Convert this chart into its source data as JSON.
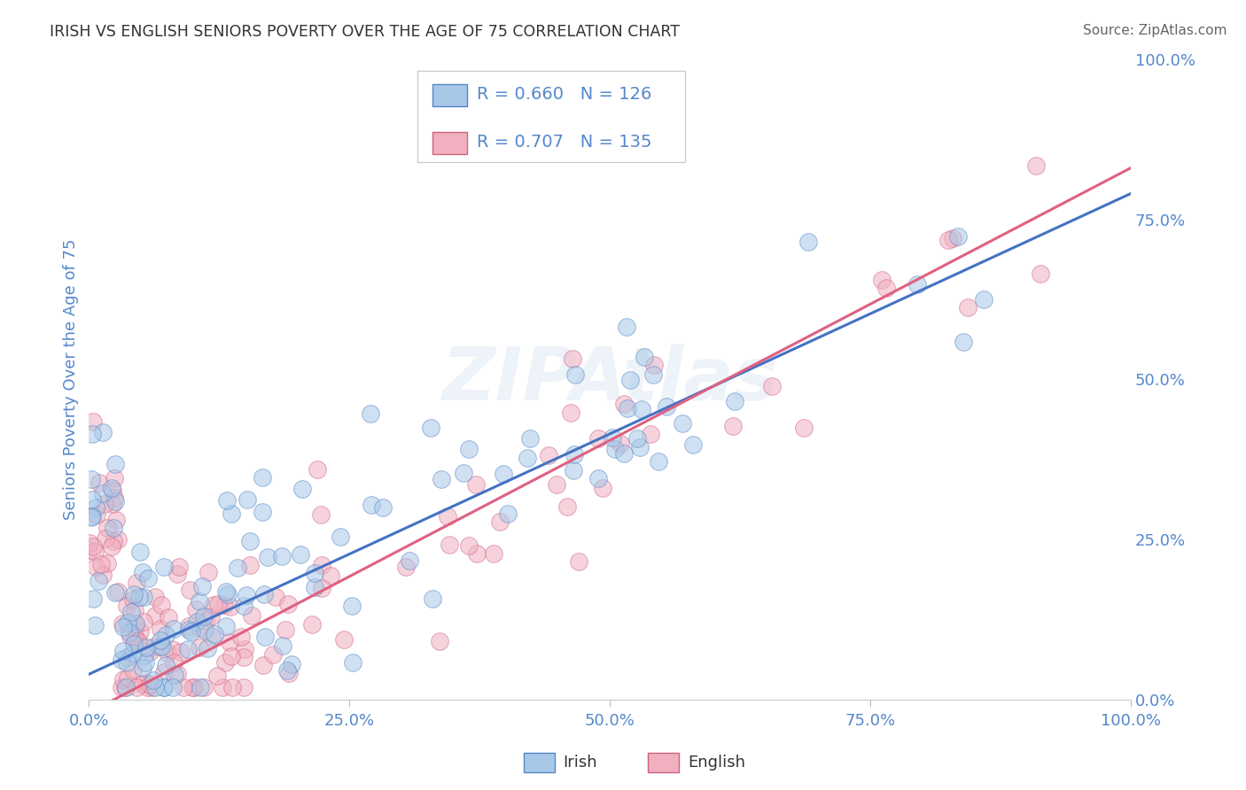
{
  "title": "IRISH VS ENGLISH SENIORS POVERTY OVER THE AGE OF 75 CORRELATION CHART",
  "source": "Source: ZipAtlas.com",
  "ylabel": "Seniors Poverty Over the Age of 75",
  "irish_R": 0.66,
  "irish_N": 126,
  "english_R": 0.707,
  "english_N": 135,
  "irish_color": "#a8c8e8",
  "english_color": "#f0b0c0",
  "irish_edge_color": "#5585c5",
  "english_edge_color": "#d06080",
  "irish_line_color": "#4472c4",
  "english_line_color": "#e06080",
  "axis_color": "#5588cc",
  "grid_color": "#cccccc",
  "background_color": "#ffffff",
  "xlim": [
    0.0,
    1.0
  ],
  "ylim": [
    0.0,
    1.0
  ],
  "xticks": [
    0.0,
    0.25,
    0.5,
    0.75,
    1.0
  ],
  "yticks": [
    0.0,
    0.25,
    0.5,
    0.75,
    1.0
  ],
  "irish_line_slope": 0.75,
  "irish_line_intercept": 0.04,
  "english_line_slope": 0.85,
  "english_line_intercept": -0.02
}
